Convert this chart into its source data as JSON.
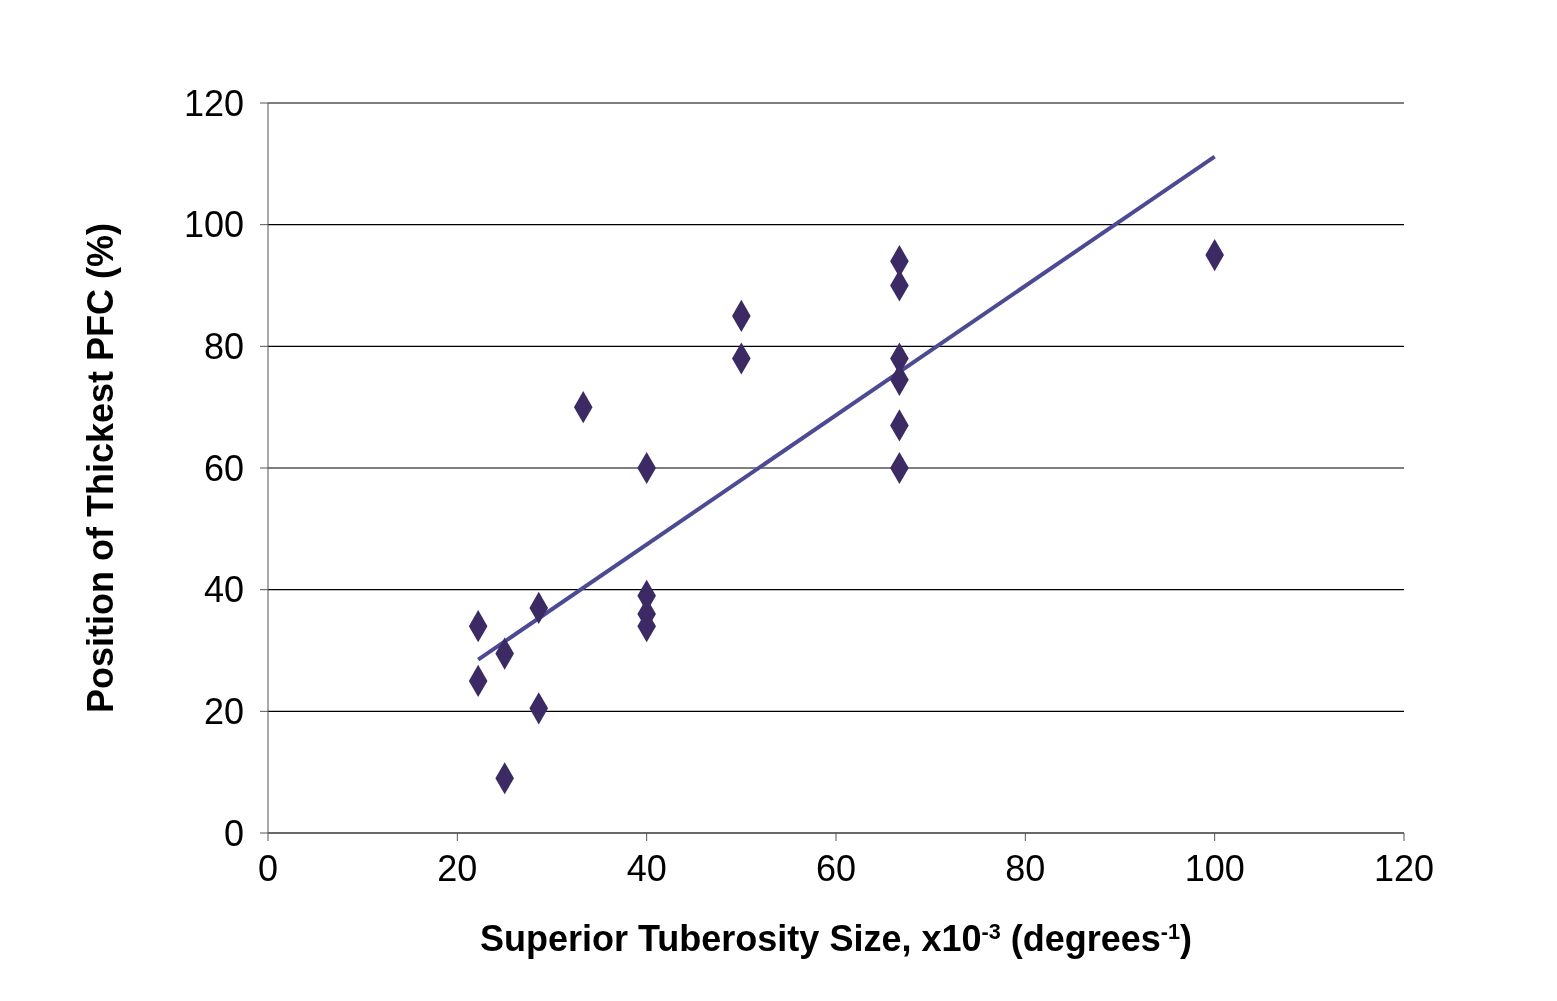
{
  "chart_data": {
    "type": "scatter",
    "xlabel": "Superior Tuberosity Size, x10$^{-3}$ (degrees$^{-1}$)",
    "ylabel": "Position of Thickest PFC (%)",
    "xlim": [
      0,
      120
    ],
    "xticks": [
      0,
      20,
      40,
      60,
      80,
      100,
      120
    ],
    "ylim": [
      0,
      120
    ],
    "yticks": [
      0,
      20,
      40,
      60,
      80,
      100,
      120
    ],
    "grid": "y",
    "legend": false,
    "marker": "diamond",
    "series": [
      {
        "color": "#3b2a63",
        "x": [
          22.2,
          22.2,
          25,
          25,
          28.6,
          28.6,
          33.3,
          40,
          40,
          40,
          40,
          50,
          50,
          66.7,
          66.7,
          66.7,
          66.7,
          66.7,
          66.7,
          100
        ],
        "values": [
          34,
          25,
          29.5,
          9,
          37,
          20.5,
          70,
          60,
          39,
          36,
          34,
          85,
          78,
          94,
          90,
          78,
          74.5,
          67,
          60,
          95
        ]
      },
      {
        "type": "line",
        "color": "#4d4a94",
        "marker": "none",
        "line_style": "solid",
        "x": [
          22.2,
          100
        ],
        "values": [
          28.5,
          111.2
        ]
      }
    ]
  }
}
